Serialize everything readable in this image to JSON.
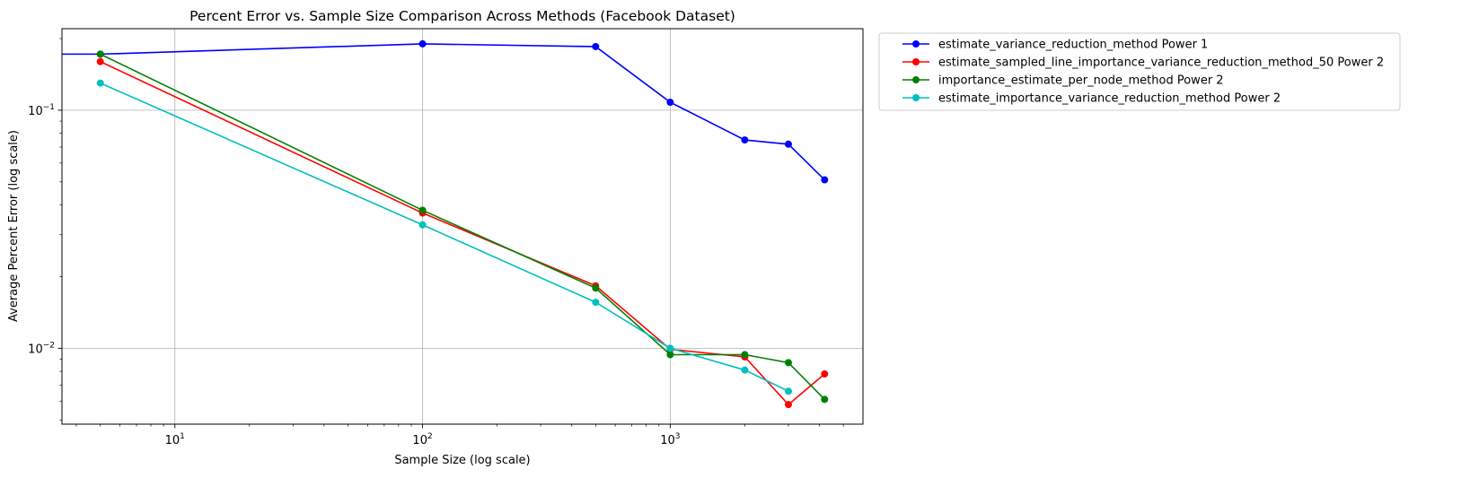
{
  "chart_data": {
    "type": "line",
    "title": "Percent Error vs. Sample Size Comparison Across Methods (Facebook Dataset)",
    "xlabel": "Sample Size (log scale)",
    "ylabel": "Average Percent Error (log scale)",
    "xscale": "log",
    "yscale": "log",
    "xlim": [
      3.5,
      6000
    ],
    "ylim": [
      0.0048,
      0.22
    ],
    "grid": true,
    "legend_position": "outside-top-right",
    "x_ticks": [
      {
        "value": 10,
        "base": "10",
        "exp": "1"
      },
      {
        "value": 100,
        "base": "10",
        "exp": "2"
      },
      {
        "value": 1000,
        "base": "10",
        "exp": "3"
      }
    ],
    "y_ticks": [
      {
        "value": 0.1,
        "base": "10",
        "exp": "−1"
      },
      {
        "value": 0.01,
        "base": "10",
        "exp": "−2"
      }
    ],
    "series": [
      {
        "name": "estimate_variance_reduction_method Power 1",
        "color": "#0000ff",
        "x": [
          3.5,
          5,
          100,
          500,
          1000,
          2000,
          3000,
          4200
        ],
        "y": [
          0.172,
          0.172,
          0.19,
          0.185,
          0.108,
          0.075,
          0.072,
          0.051
        ]
      },
      {
        "name": "estimate_sampled_line_importance_variance_reduction_method_50 Power 2",
        "color": "#ff0000",
        "x": [
          5,
          100,
          500,
          1000,
          2000,
          3000,
          4200
        ],
        "y": [
          0.16,
          0.037,
          0.0183,
          0.0099,
          0.0092,
          0.0058,
          0.0078
        ]
      },
      {
        "name": "importance_estimate_per_node_method Power 2",
        "color": "#008000",
        "x": [
          5,
          100,
          500,
          1000,
          2000,
          3000,
          4200
        ],
        "y": [
          0.172,
          0.038,
          0.0179,
          0.0094,
          0.0094,
          0.0087,
          0.0061
        ]
      },
      {
        "name": "estimate_importance_variance_reduction_method Power 2",
        "color": "#00bfbf",
        "x": [
          5,
          100,
          500,
          1000,
          2000,
          3000
        ],
        "y": [
          0.13,
          0.033,
          0.0156,
          0.01,
          0.0081,
          0.0066
        ]
      }
    ]
  }
}
